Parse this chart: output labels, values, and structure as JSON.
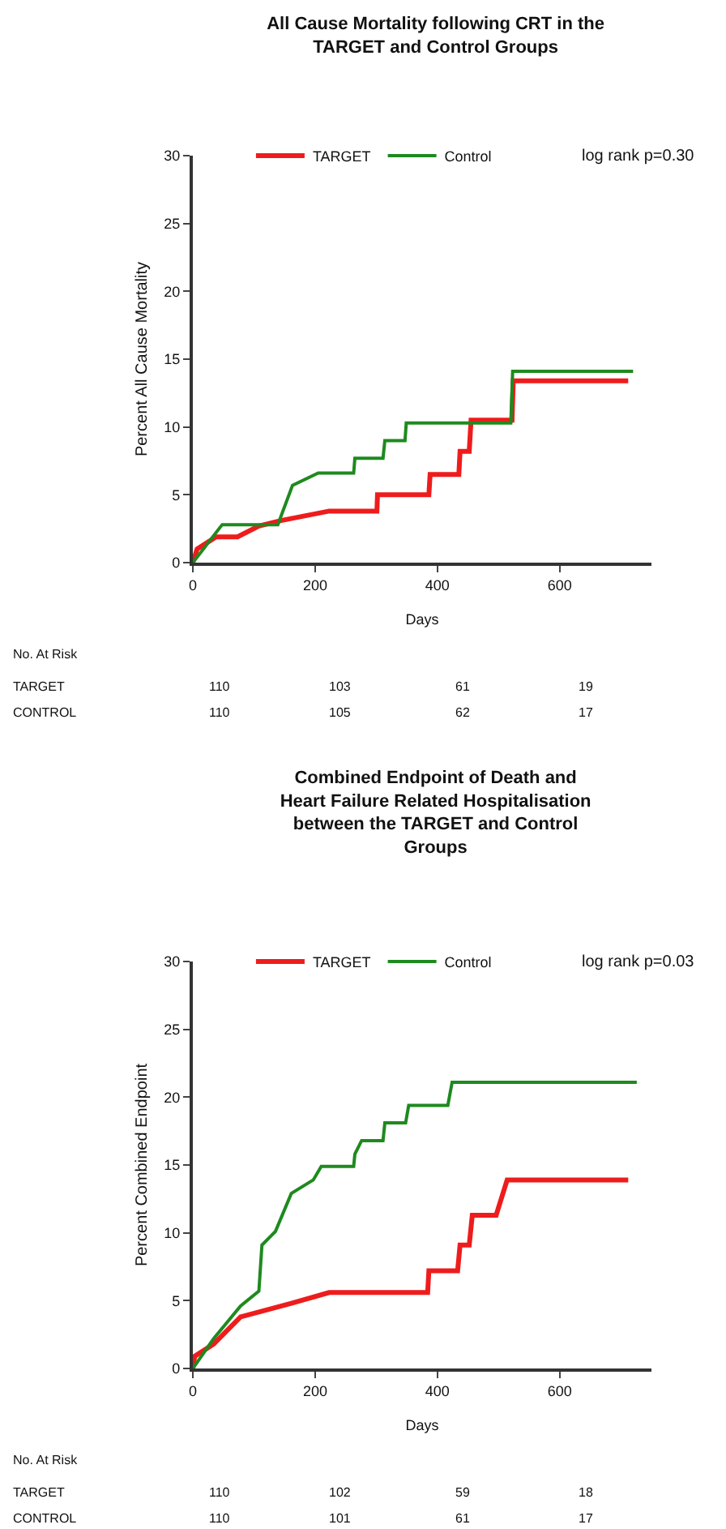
{
  "chart_data": [
    {
      "type": "line",
      "title": "All Cause Mortality following CRT in the\nTARGET and Control Groups",
      "xlabel": "Days",
      "ylabel": "Percent All Cause Mortality",
      "xlim": [
        0,
        750
      ],
      "xticks": [
        0,
        200,
        400,
        600
      ],
      "ylim": [
        0,
        30
      ],
      "yticks": [
        0,
        5,
        10,
        15,
        20,
        25,
        30
      ],
      "grid": false,
      "legend": "top",
      "marker": "none",
      "line_style": "solid",
      "series": [
        {
          "name": "TARGET",
          "color": "#ee1c1c",
          "x": [
            0,
            7,
            38,
            73,
            108,
            144,
            223,
            301,
            302,
            386,
            388,
            435,
            437,
            452,
            455,
            522,
            524,
            712
          ],
          "values": [
            0,
            1,
            1.9,
            1.9,
            2.7,
            3.1,
            3.8,
            3.8,
            5,
            5,
            6.5,
            6.5,
            8.2,
            8.2,
            10.5,
            10.5,
            13.4,
            13.4
          ]
        },
        {
          "name": "Control",
          "color": "#1e8a1e",
          "x": [
            0,
            48,
            139,
            163,
            205,
            263,
            265,
            311,
            314,
            347,
            349,
            520,
            523,
            720
          ],
          "values": [
            0,
            2.8,
            2.8,
            5.7,
            6.6,
            6.6,
            7.7,
            7.7,
            9,
            9,
            10.3,
            10.3,
            14.1,
            14.1
          ]
        }
      ],
      "annotations": [
        "log rank p=0.30",
        "No. At Risk",
        "TARGET",
        "110",
        "103",
        "61",
        "19",
        "CONTROL",
        "110",
        "105",
        "62",
        "17"
      ]
    },
    {
      "type": "line",
      "title": "Combined Endpoint of Death and\nHeart Failure Related Hospitalisation\nbetween the TARGET and Control\nGroups",
      "xlabel": "Days",
      "ylabel": "Percent Combined Endpoint",
      "xlim": [
        0,
        750
      ],
      "xticks": [
        0,
        200,
        400,
        600
      ],
      "ylim": [
        0,
        30
      ],
      "yticks": [
        0,
        5,
        10,
        15,
        20,
        25,
        30
      ],
      "grid": false,
      "legend": "top",
      "marker": "none",
      "line_style": "solid",
      "series": [
        {
          "name": "TARGET",
          "color": "#ee1c1c",
          "x": [
            0,
            3,
            34,
            78,
            161,
            223,
            384,
            386,
            433,
            437,
            452,
            457,
            496,
            514,
            712
          ],
          "values": [
            0,
            0.9,
            1.8,
            3.8,
            4.8,
            5.6,
            5.6,
            7.2,
            7.2,
            9.1,
            9.1,
            11.3,
            11.3,
            13.9,
            13.9
          ]
        },
        {
          "name": "Control",
          "color": "#1e8a1e",
          "x": [
            0,
            34,
            78,
            108,
            113,
            135,
            161,
            197,
            210,
            263,
            265,
            276,
            311,
            314,
            348,
            353,
            417,
            424,
            726
          ],
          "values": [
            0,
            2.2,
            4.6,
            5.7,
            9.1,
            10.1,
            12.9,
            13.9,
            14.9,
            14.9,
            15.8,
            16.8,
            16.8,
            18.1,
            18.1,
            19.4,
            19.4,
            21.1,
            21.1
          ]
        }
      ],
      "annotations": [
        "log rank p=0.03",
        "No. At Risk",
        "TARGET",
        "110",
        "102",
        "59",
        "18",
        "CONTROL",
        "110",
        "101",
        "61",
        "17"
      ]
    }
  ]
}
